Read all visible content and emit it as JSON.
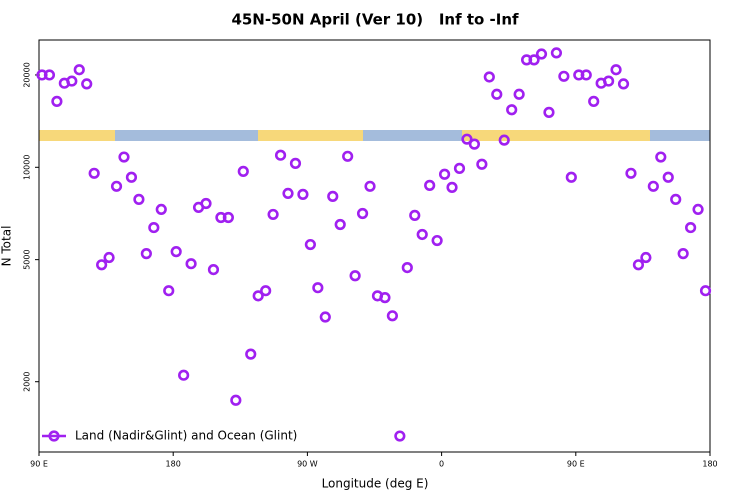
{
  "chart_data": {
    "type": "scatter",
    "title": "45N-50N April (Ver 10)   Inf to -Inf",
    "x_label": "Longitude (deg E)",
    "y_label": "N Total",
    "log_y": true,
    "xlim": [
      90,
      540
    ],
    "xticks": [
      {
        "value": 90,
        "label": "90 E"
      },
      180,
      {
        "value": 270,
        "label": "90 W"
      },
      {
        "value": 360,
        "label": "0"
      },
      {
        "value": 450,
        "label": "90 E"
      },
      {
        "value": 540,
        "label": "180"
      }
    ],
    "ylim": [
      1180,
      26000
    ],
    "yticks": [
      2000,
      5000,
      10000,
      20000
    ],
    "legend": "bottom-left",
    "series": [
      {
        "name": "Land (Nadir&Glint) and Ocean (Glint)",
        "color": "#a020f0",
        "x": [
          92,
          97,
          102,
          107,
          112,
          117,
          122,
          127,
          132,
          137,
          142,
          147,
          152,
          157,
          162,
          167,
          172,
          177,
          182,
          187,
          192,
          197,
          202,
          207,
          212,
          217,
          222,
          227,
          232,
          237,
          242,
          247,
          252,
          257,
          262,
          267,
          272,
          277,
          282,
          287,
          292,
          297,
          302,
          307,
          312,
          317,
          322,
          327,
          332,
          337,
          342,
          347,
          352,
          357,
          362,
          367,
          372,
          377,
          382,
          387,
          392,
          397,
          402,
          407,
          412,
          417,
          422,
          427,
          432,
          437,
          442,
          447,
          452,
          457,
          462,
          467,
          472,
          477,
          482,
          487,
          492,
          497,
          502,
          507,
          512,
          517,
          522,
          527,
          532,
          537
        ],
        "values": [
          20000,
          20000,
          16400,
          18800,
          19100,
          20800,
          18700,
          9560,
          4810,
          5080,
          8670,
          10800,
          9280,
          7860,
          5230,
          6360,
          7290,
          3960,
          5310,
          2100,
          4850,
          7400,
          7620,
          4640,
          6860,
          6860,
          1740,
          9700,
          2460,
          3810,
          3960,
          7020,
          10950,
          8220,
          10300,
          8160,
          5600,
          4050,
          3250,
          8040,
          6510,
          10860,
          4430,
          7070,
          8670,
          3810,
          3760,
          3280,
          1330,
          4710,
          6970,
          6040,
          8730,
          5770,
          9490,
          8600,
          9920,
          12350,
          11900,
          10230,
          19700,
          17300,
          12260,
          15400,
          17300,
          22400,
          22400,
          23400,
          15100,
          23600,
          19800,
          9280,
          20000,
          20000,
          16400,
          18800,
          19100,
          20800,
          18700,
          9560,
          4810,
          5080,
          8670,
          10800,
          9280,
          7860,
          5230,
          6360,
          7290,
          3960
        ]
      }
    ]
  }
}
